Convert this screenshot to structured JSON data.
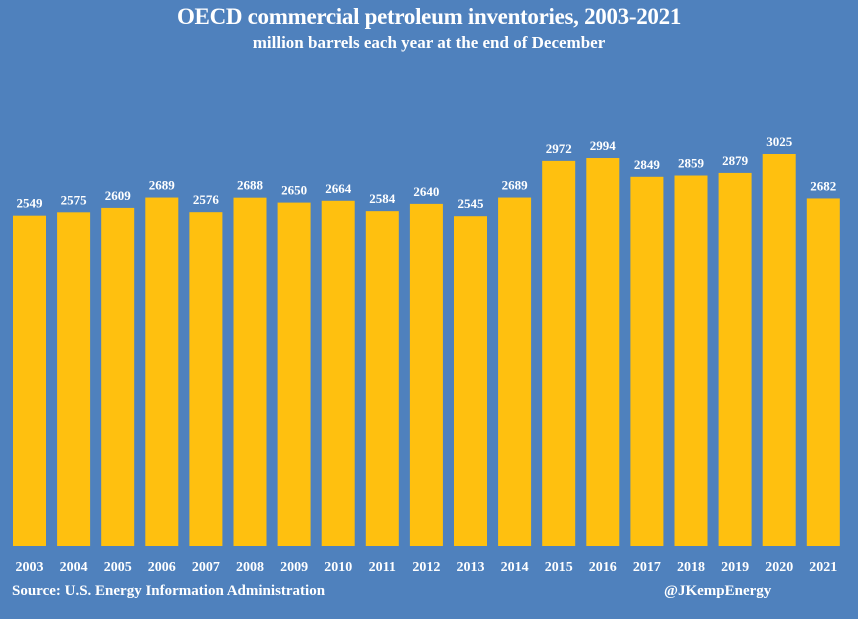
{
  "chart_data": {
    "type": "bar",
    "title": "OECD commercial petroleum inventories, 2003-2021",
    "subtitle": "million barrels each year at the end of December",
    "xlabel": "",
    "ylabel": "",
    "ylim": [
      0,
      3100
    ],
    "grid": false,
    "categories": [
      "2003",
      "2004",
      "2005",
      "2006",
      "2007",
      "2008",
      "2009",
      "2010",
      "2011",
      "2012",
      "2013",
      "2014",
      "2015",
      "2016",
      "2017",
      "2018",
      "2019",
      "2020",
      "2021"
    ],
    "values": [
      2549,
      2575,
      2609,
      2689,
      2576,
      2688,
      2650,
      2664,
      2584,
      2640,
      2545,
      2689,
      2972,
      2994,
      2849,
      2859,
      2879,
      3025,
      2682
    ],
    "data_labels": true,
    "colors": {
      "background": "#4f81bd",
      "bar": "#ffc00f",
      "text": "#ffffff"
    },
    "source": "Source: U.S. Energy Information Administration",
    "credit": "@JKempEnergy"
  }
}
